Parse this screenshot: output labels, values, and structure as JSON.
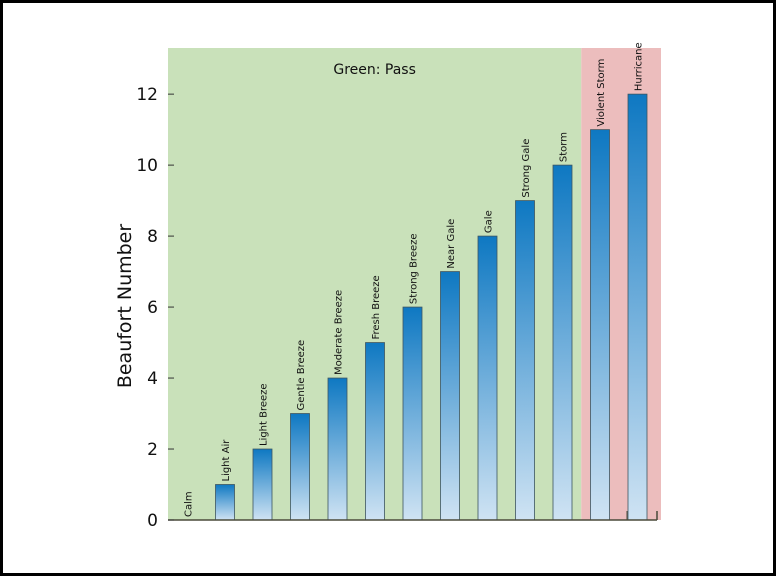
{
  "chart_data": {
    "type": "bar",
    "title": "",
    "xlabel": "",
    "ylabel": "Beaufort Number",
    "ylim": [
      0,
      13.3
    ],
    "yticks": [
      0,
      2,
      4,
      6,
      8,
      10,
      12
    ],
    "categories": [
      "Calm",
      "Light Air",
      "Light Breeze",
      "Gentle Breeze",
      "Moderate Breeze",
      "Fresh Breeze",
      "Strong Breeze",
      "Near Gale",
      "Gale",
      "Strong Gale",
      "Storm",
      "Violent Storm",
      "Hurricane"
    ],
    "values": [
      0,
      1,
      2,
      3,
      4,
      5,
      6,
      7,
      8,
      9,
      10,
      11,
      12
    ],
    "regions": [
      {
        "label": "Green: Pass",
        "from_category": "Calm",
        "to_category": "Storm",
        "color": "#c9e1ba"
      },
      {
        "label": "",
        "from_category": "Violent Storm",
        "to_category": "Hurricane",
        "color": "#ecbdbd"
      }
    ],
    "bar_gradient": {
      "top": "#0e78c2",
      "bottom": "#cfe3f3"
    },
    "grid": false
  }
}
